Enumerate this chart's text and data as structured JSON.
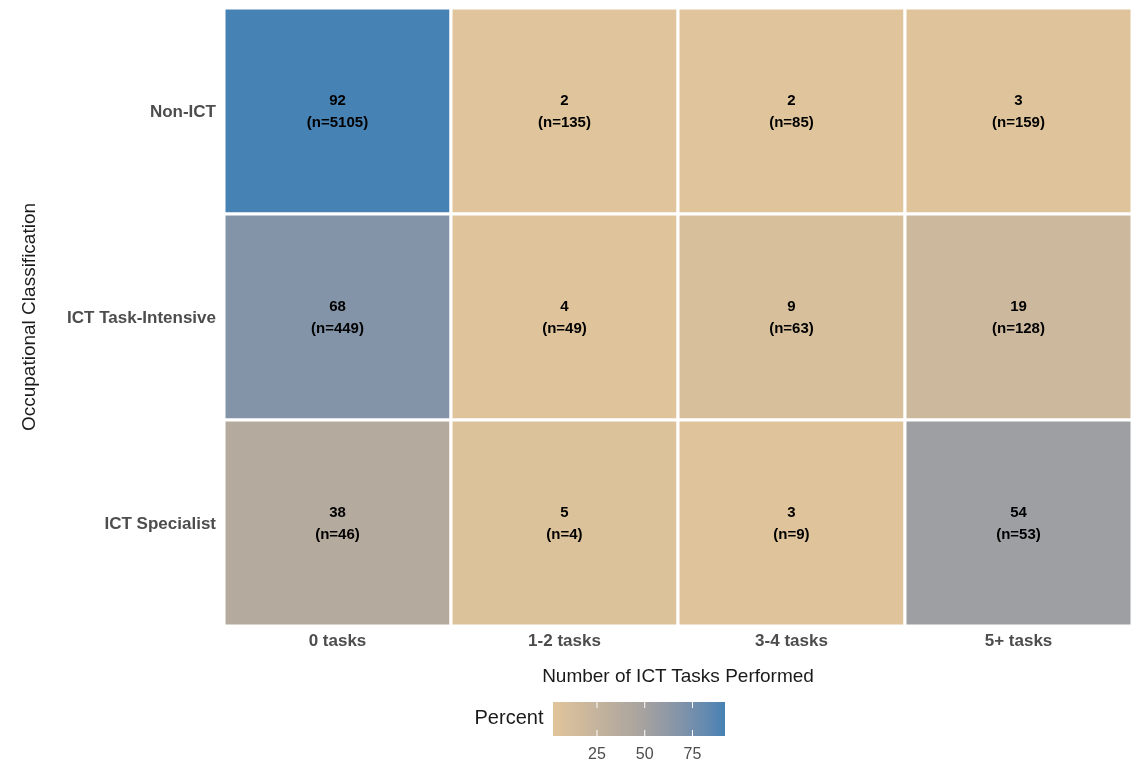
{
  "chart_data": {
    "type": "heatmap",
    "xlabel": "Number of ICT Tasks Performed",
    "ylabel": "Occupational Classification",
    "legend_title": "Percent",
    "categories": [
      "0 tasks",
      "1-2 tasks",
      "3-4 tasks",
      "5+ tasks"
    ],
    "y_categories": [
      "Non-ICT",
      "ICT Task-Intensive",
      "ICT Specialist"
    ],
    "cells": [
      [
        92,
        2,
        2,
        3
      ],
      [
        68,
        4,
        9,
        19
      ],
      [
        38,
        5,
        3,
        54
      ]
    ],
    "cell_labels": [
      [
        "92\n(n=5105)",
        "2\n(n=135)",
        "2\n(n=85)",
        "3\n(n=159)"
      ],
      [
        "68\n(n=449)",
        "4\n(n=49)",
        "9\n(n=63)",
        "19\n(n=128)"
      ],
      [
        "38\n(n=46)",
        "5\n(n=4)",
        "3\n(n=9)",
        "54\n(n=53)"
      ]
    ],
    "colors": [
      "#e0c49b",
      "#aaa49e",
      "#4682b4"
    ],
    "clim": [
      2,
      92
    ],
    "cticks": [
      25,
      50,
      75
    ]
  }
}
